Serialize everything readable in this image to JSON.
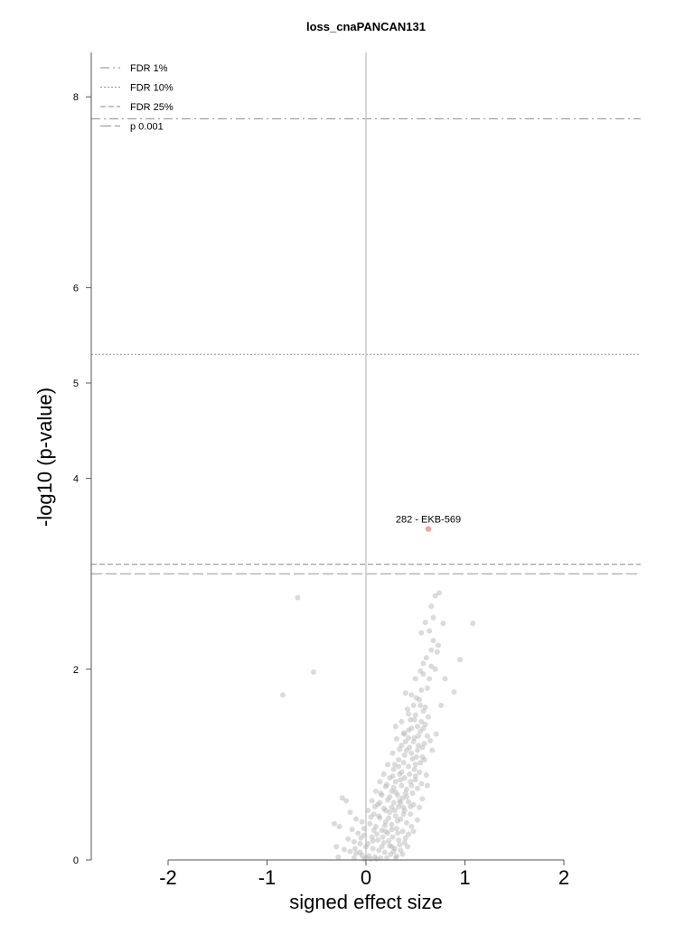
{
  "chart_data": {
    "type": "scatter",
    "title": "loss_cnaPANCAN131",
    "xlabel": "signed effect size",
    "ylabel": "-log10 (p-value)",
    "xlim": [
      -2.8,
      2.8
    ],
    "ylim": [
      0,
      8.5
    ],
    "xticks": [
      -2,
      -1,
      0,
      1,
      2
    ],
    "yticks": [
      0,
      2,
      4,
      5,
      6,
      8
    ],
    "grid": false,
    "legend_position": "top-left",
    "colors": {
      "points": "#b8b8b8",
      "highlight": "#f4a3a3",
      "lines": "#a0a0a0",
      "axis": "#555555",
      "zero_line": "#c8c8c8"
    },
    "thresholds": [
      {
        "label": "FDR 1%",
        "y": 7.77,
        "style": "dashdot"
      },
      {
        "label": "FDR 10%",
        "y": 5.3,
        "style": "dotted"
      },
      {
        "label": "FDR 25%",
        "y": 3.1,
        "style": "dashed"
      },
      {
        "label": "p 0.001",
        "y": 3.0,
        "style": "longdash"
      }
    ],
    "highlight": [
      {
        "label": "282 - EKB-569",
        "x": 0.63,
        "y": 3.47
      }
    ],
    "points": [
      [
        -0.69,
        2.75
      ],
      [
        -0.53,
        1.97
      ],
      [
        -0.84,
        1.73
      ],
      [
        1.08,
        2.48
      ],
      [
        0.74,
        2.8
      ],
      [
        0.68,
        2.54
      ],
      [
        0.95,
        2.1
      ],
      [
        0.89,
        1.76
      ],
      [
        0.7,
        2.77
      ],
      [
        0.6,
        2.49
      ],
      [
        0.56,
        2.38
      ],
      [
        0.68,
        2.3
      ],
      [
        0.66,
        2.2
      ],
      [
        0.72,
        2.18
      ],
      [
        0.58,
        2.06
      ],
      [
        0.66,
        2.03
      ],
      [
        0.55,
        1.98
      ],
      [
        0.5,
        1.9
      ],
      [
        0.62,
        1.8
      ],
      [
        0.56,
        1.78
      ],
      [
        0.4,
        1.75
      ],
      [
        0.46,
        1.73
      ],
      [
        0.51,
        1.7
      ],
      [
        0.48,
        1.62
      ],
      [
        0.58,
        1.56
      ],
      [
        0.43,
        1.53
      ],
      [
        0.56,
        1.45
      ],
      [
        0.52,
        1.4
      ],
      [
        0.6,
        1.42
      ],
      [
        0.46,
        1.38
      ],
      [
        0.55,
        1.35
      ],
      [
        0.62,
        1.3
      ],
      [
        0.38,
        1.33
      ],
      [
        0.43,
        1.28
      ],
      [
        0.48,
        1.24
      ],
      [
        0.53,
        1.2
      ],
      [
        0.57,
        1.18
      ],
      [
        0.65,
        1.25
      ],
      [
        0.31,
        1.27
      ],
      [
        0.36,
        1.2
      ],
      [
        0.41,
        1.15
      ],
      [
        0.46,
        1.12
      ],
      [
        0.51,
        1.08
      ],
      [
        0.59,
        1.05
      ],
      [
        0.27,
        1.12
      ],
      [
        0.33,
        1.05
      ],
      [
        0.38,
        1.02
      ],
      [
        0.43,
        0.98
      ],
      [
        0.49,
        0.95
      ],
      [
        0.54,
        0.92
      ],
      [
        0.22,
        1.0
      ],
      [
        0.28,
        0.95
      ],
      [
        0.34,
        0.9
      ],
      [
        0.39,
        0.86
      ],
      [
        0.45,
        0.82
      ],
      [
        0.5,
        0.88
      ],
      [
        0.61,
        0.89
      ],
      [
        0.56,
        0.8
      ],
      [
        0.18,
        0.9
      ],
      [
        0.24,
        0.86
      ],
      [
        0.3,
        0.82
      ],
      [
        0.36,
        0.78
      ],
      [
        0.41,
        0.74
      ],
      [
        0.47,
        0.7
      ],
      [
        0.52,
        0.75
      ],
      [
        0.14,
        0.82
      ],
      [
        0.2,
        0.77
      ],
      [
        0.26,
        0.72
      ],
      [
        0.32,
        0.68
      ],
      [
        0.37,
        0.65
      ],
      [
        0.43,
        0.61
      ],
      [
        0.48,
        0.58
      ],
      [
        0.1,
        0.72
      ],
      [
        0.16,
        0.68
      ],
      [
        0.22,
        0.63
      ],
      [
        0.28,
        0.6
      ],
      [
        0.33,
        0.56
      ],
      [
        0.39,
        0.52
      ],
      [
        0.45,
        0.48
      ],
      [
        0.54,
        0.55
      ],
      [
        0.06,
        0.62
      ],
      [
        0.12,
        0.58
      ],
      [
        0.18,
        0.54
      ],
      [
        0.24,
        0.5
      ],
      [
        0.3,
        0.46
      ],
      [
        0.35,
        0.43
      ],
      [
        0.41,
        0.39
      ],
      [
        -0.24,
        0.65
      ],
      [
        -0.2,
        0.62
      ],
      [
        -0.16,
        0.5
      ],
      [
        0.02,
        0.52
      ],
      [
        0.08,
        0.48
      ],
      [
        0.14,
        0.44
      ],
      [
        0.2,
        0.4
      ],
      [
        0.26,
        0.37
      ],
      [
        0.31,
        0.33
      ],
      [
        0.37,
        0.3
      ],
      [
        0.43,
        0.27
      ],
      [
        -0.1,
        0.43
      ],
      [
        -0.04,
        0.4
      ],
      [
        0.04,
        0.38
      ],
      [
        0.1,
        0.35
      ],
      [
        0.16,
        0.31
      ],
      [
        0.22,
        0.28
      ],
      [
        0.27,
        0.24
      ],
      [
        0.33,
        0.21
      ],
      [
        0.39,
        0.18
      ],
      [
        -0.32,
        0.38
      ],
      [
        -0.27,
        0.35
      ],
      [
        -0.14,
        0.32
      ],
      [
        -0.08,
        0.28
      ],
      [
        -0.02,
        0.26
      ],
      [
        0.06,
        0.24
      ],
      [
        0.12,
        0.21
      ],
      [
        0.18,
        0.18
      ],
      [
        0.24,
        0.15
      ],
      [
        0.29,
        0.12
      ],
      [
        0.35,
        0.1
      ],
      [
        -0.18,
        0.22
      ],
      [
        -0.12,
        0.19
      ],
      [
        -0.06,
        0.17
      ],
      [
        0.0,
        0.14
      ],
      [
        0.07,
        0.12
      ],
      [
        0.13,
        0.1
      ],
      [
        0.19,
        0.08
      ],
      [
        0.25,
        0.06
      ],
      [
        0.31,
        0.04
      ],
      [
        -0.3,
        0.14
      ],
      [
        -0.22,
        0.11
      ],
      [
        -0.16,
        0.09
      ],
      [
        -0.1,
        0.07
      ],
      [
        -0.04,
        0.05
      ],
      [
        0.03,
        0.04
      ],
      [
        0.09,
        0.03
      ],
      [
        0.15,
        0.02
      ],
      [
        0.21,
        0.02
      ],
      [
        -0.28,
        0.03
      ],
      [
        -0.12,
        0.02
      ],
      [
        -0.02,
        0.01
      ],
      [
        0.05,
        0.01
      ],
      [
        0.11,
        0.01
      ],
      [
        0.42,
        1.58
      ],
      [
        0.36,
        1.45
      ],
      [
        0.3,
        1.4
      ],
      [
        0.28,
        0.76
      ],
      [
        0.36,
        0.92
      ],
      [
        0.47,
        1.06
      ],
      [
        0.26,
        0.55
      ],
      [
        0.2,
        0.3
      ],
      [
        0.14,
        0.6
      ],
      [
        0.34,
        0.62
      ],
      [
        0.4,
        0.7
      ],
      [
        0.44,
        0.9
      ],
      [
        0.5,
        1.0
      ],
      [
        0.53,
        1.3
      ],
      [
        0.6,
        1.6
      ],
      [
        0.64,
        1.9
      ],
      [
        0.7,
        2.0
      ],
      [
        0.73,
        2.25
      ],
      [
        0.78,
        2.48
      ],
      [
        0.66,
        2.66
      ],
      [
        0.52,
        1.15
      ],
      [
        0.58,
        1.38
      ],
      [
        0.45,
        0.56
      ],
      [
        0.38,
        0.48
      ],
      [
        0.32,
        0.28
      ],
      [
        0.16,
        0.14
      ],
      [
        0.07,
        0.2
      ],
      [
        -0.02,
        0.33
      ],
      [
        -0.06,
        0.08
      ],
      [
        0.0,
        0.02
      ],
      [
        0.23,
        0.44
      ],
      [
        0.29,
        0.52
      ],
      [
        0.35,
        0.6
      ],
      [
        0.41,
        0.66
      ],
      [
        0.46,
        0.78
      ],
      [
        0.5,
        0.84
      ],
      [
        0.55,
        1.02
      ],
      [
        0.59,
        1.22
      ],
      [
        0.63,
        1.5
      ],
      [
        0.55,
        1.62
      ],
      [
        0.49,
        1.47
      ],
      [
        0.43,
        1.36
      ],
      [
        0.39,
        1.1
      ],
      [
        0.33,
        0.98
      ],
      [
        0.27,
        0.88
      ],
      [
        0.21,
        0.79
      ],
      [
        0.15,
        0.7
      ],
      [
        0.09,
        0.56
      ],
      [
        0.05,
        0.45
      ],
      [
        0.11,
        0.27
      ],
      [
        0.17,
        0.24
      ],
      [
        0.23,
        0.2
      ],
      [
        0.28,
        0.09
      ],
      [
        0.34,
        0.16
      ],
      [
        0.4,
        0.23
      ],
      [
        0.46,
        0.35
      ],
      [
        0.52,
        0.42
      ],
      [
        0.57,
        0.64
      ],
      [
        0.62,
        0.78
      ],
      [
        0.67,
        1.15
      ],
      [
        0.71,
        1.32
      ],
      [
        0.76,
        1.62
      ],
      [
        0.8,
        1.9
      ],
      [
        0.48,
        0.3
      ],
      [
        0.42,
        0.14
      ],
      [
        0.37,
        0.06
      ],
      [
        0.3,
        0.02
      ],
      [
        0.26,
        0.32
      ],
      [
        0.2,
        0.52
      ],
      [
        0.24,
        0.66
      ],
      [
        0.3,
        0.71
      ],
      [
        0.35,
        0.84
      ],
      [
        0.4,
        1.24
      ],
      [
        0.45,
        1.47
      ],
      [
        0.49,
        1.28
      ],
      [
        0.54,
        1.68
      ],
      [
        0.58,
        1.95
      ],
      [
        0.61,
        2.12
      ],
      [
        0.64,
        2.4
      ],
      [
        0.44,
        1.18
      ],
      [
        0.38,
        0.55
      ],
      [
        0.32,
        0.41
      ],
      [
        0.26,
        0.14
      ],
      [
        0.19,
        0.36
      ],
      [
        0.13,
        0.46
      ],
      [
        0.08,
        0.31
      ],
      [
        0.02,
        0.17
      ],
      [
        -0.05,
        0.23
      ],
      [
        -0.11,
        0.12
      ],
      [
        0.29,
        1.0
      ],
      [
        0.34,
        1.16
      ],
      [
        0.39,
        1.32
      ],
      [
        0.5,
        1.52
      ],
      [
        0.57,
        1.08
      ]
    ]
  }
}
